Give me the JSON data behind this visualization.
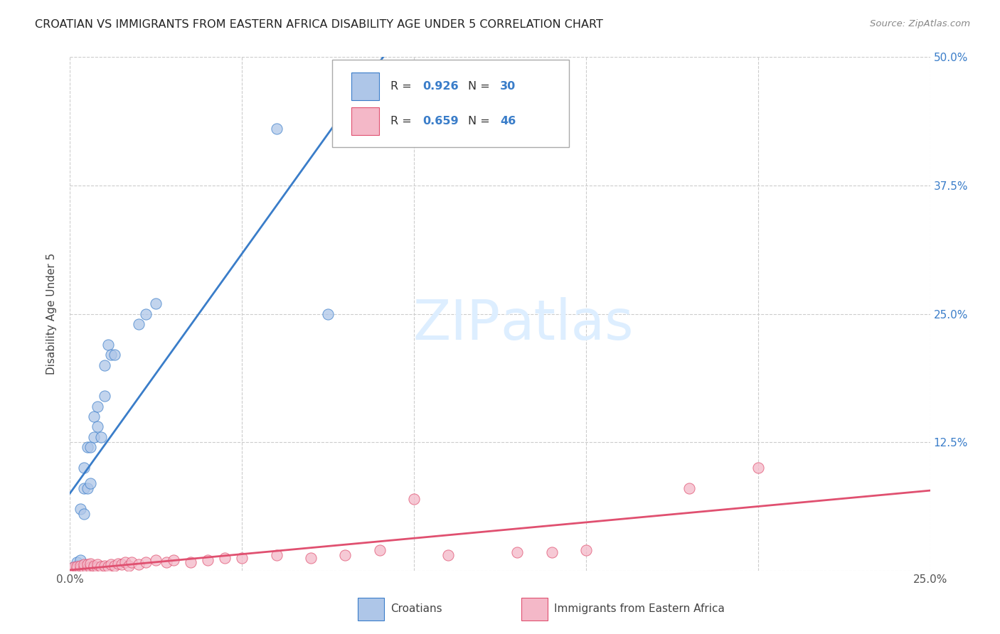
{
  "title": "CROATIAN VS IMMIGRANTS FROM EASTERN AFRICA DISABILITY AGE UNDER 5 CORRELATION CHART",
  "source": "Source: ZipAtlas.com",
  "ylabel": "Disability Age Under 5",
  "xlim": [
    0.0,
    0.25
  ],
  "ylim": [
    0.0,
    0.5
  ],
  "grid_color": "#cccccc",
  "background_color": "#ffffff",
  "croatian_color": "#aec6e8",
  "croatian_line_color": "#3a7dc9",
  "immigrant_color": "#f4b8c8",
  "immigrant_line_color": "#e05070",
  "watermark_color": "#ddeeff",
  "legend_label1": "Croatians",
  "legend_label2": "Immigrants from Eastern Africa",
  "croatian_scatter_x": [
    0.001,
    0.001,
    0.002,
    0.002,
    0.002,
    0.003,
    0.003,
    0.003,
    0.004,
    0.004,
    0.004,
    0.005,
    0.005,
    0.006,
    0.006,
    0.007,
    0.007,
    0.008,
    0.008,
    0.009,
    0.01,
    0.01,
    0.011,
    0.012,
    0.013,
    0.02,
    0.022,
    0.025,
    0.06,
    0.075
  ],
  "croatian_scatter_y": [
    0.002,
    0.003,
    0.002,
    0.005,
    0.008,
    0.004,
    0.01,
    0.06,
    0.055,
    0.08,
    0.1,
    0.08,
    0.12,
    0.085,
    0.12,
    0.13,
    0.15,
    0.14,
    0.16,
    0.13,
    0.17,
    0.2,
    0.22,
    0.21,
    0.21,
    0.24,
    0.25,
    0.26,
    0.43,
    0.25
  ],
  "immigrant_scatter_x": [
    0.001,
    0.001,
    0.002,
    0.002,
    0.003,
    0.003,
    0.004,
    0.004,
    0.005,
    0.005,
    0.006,
    0.006,
    0.007,
    0.007,
    0.008,
    0.008,
    0.009,
    0.01,
    0.011,
    0.012,
    0.013,
    0.014,
    0.015,
    0.016,
    0.017,
    0.018,
    0.02,
    0.022,
    0.025,
    0.028,
    0.03,
    0.035,
    0.04,
    0.045,
    0.05,
    0.06,
    0.07,
    0.08,
    0.09,
    0.1,
    0.11,
    0.13,
    0.14,
    0.15,
    0.18,
    0.2
  ],
  "immigrant_scatter_y": [
    0.002,
    0.003,
    0.002,
    0.004,
    0.002,
    0.005,
    0.003,
    0.006,
    0.002,
    0.006,
    0.003,
    0.007,
    0.003,
    0.005,
    0.003,
    0.006,
    0.004,
    0.005,
    0.004,
    0.006,
    0.005,
    0.007,
    0.006,
    0.008,
    0.005,
    0.008,
    0.006,
    0.008,
    0.01,
    0.008,
    0.01,
    0.008,
    0.01,
    0.012,
    0.012,
    0.015,
    0.012,
    0.015,
    0.02,
    0.07,
    0.015,
    0.018,
    0.018,
    0.02,
    0.08,
    0.1
  ]
}
